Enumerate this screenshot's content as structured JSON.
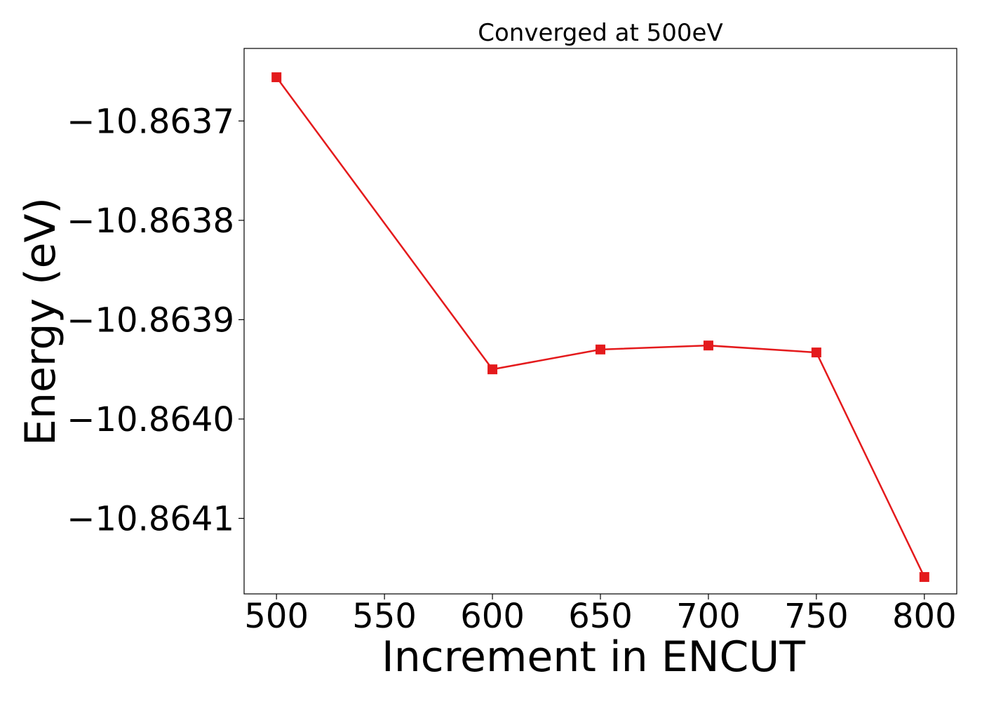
{
  "chart_data": {
    "type": "line",
    "title": "Converged at 500eV",
    "xlabel": "Increment in ENCUT",
    "ylabel": "Energy (eV)",
    "xlim": [
      485,
      815
    ],
    "ylim": [
      -10.864176,
      -10.863627
    ],
    "xticks": [
      500,
      550,
      600,
      650,
      700,
      750,
      800
    ],
    "xtick_labels": [
      "500",
      "550",
      "600",
      "650",
      "700",
      "750",
      "800"
    ],
    "yticks": [
      -10.8637,
      -10.8638,
      -10.8639,
      -10.864,
      -10.8641
    ],
    "ytick_labels": [
      "−10.8637",
      "−10.8638",
      "−10.8639",
      "−10.8640",
      "−10.8641"
    ],
    "grid": false,
    "series": [
      {
        "color": "#e41a1c",
        "marker": "square",
        "x": [
          500,
          600,
          650,
          700,
          750,
          800
        ],
        "y": [
          -10.863656,
          -10.86395,
          -10.86393,
          -10.863926,
          -10.863933,
          -10.864159
        ]
      }
    ]
  }
}
